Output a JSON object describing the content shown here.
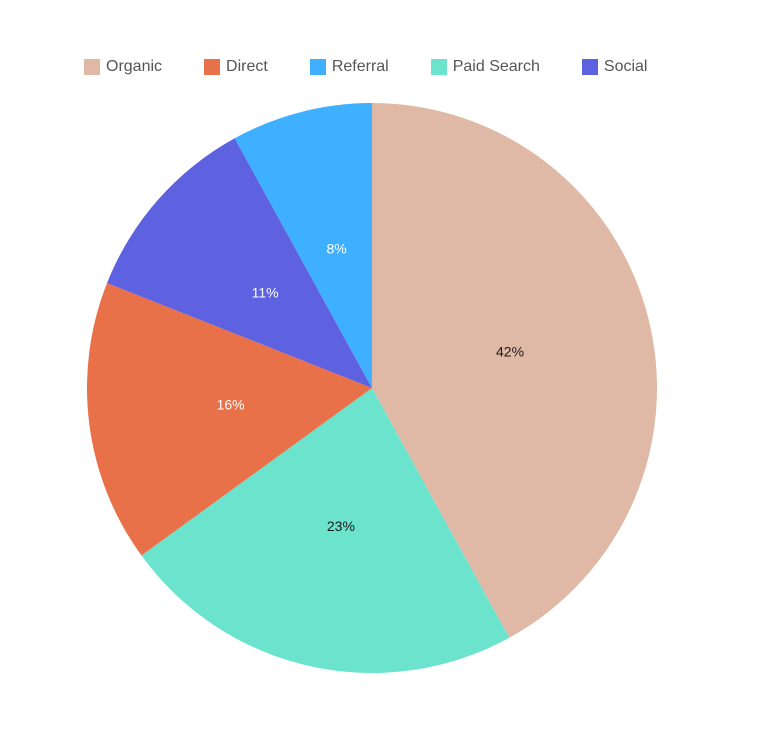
{
  "chart_data": {
    "type": "pie",
    "categories": [
      "Organic",
      "Paid Search",
      "Direct",
      "Social",
      "Referral"
    ],
    "values": [
      42,
      23,
      16,
      11,
      8
    ],
    "labels": [
      "42%",
      "23%",
      "16%",
      "11%",
      "8%"
    ],
    "colors": [
      "#e0b9a6",
      "#6be3cd",
      "#e8714a",
      "#5e62e0",
      "#3fafff"
    ],
    "label_colors": [
      "#1a1a1a",
      "#1a1a1a",
      "#ffffff",
      "#ffffff",
      "#ffffff"
    ],
    "start_angle_deg": 0,
    "direction": "clockwise",
    "legend": {
      "placement": "top",
      "items": [
        {
          "label": "Organic",
          "color": "#e0b9a6"
        },
        {
          "label": "Direct",
          "color": "#e8714a"
        },
        {
          "label": "Referral",
          "color": "#3fafff"
        },
        {
          "label": "Paid Search",
          "color": "#6be3cd"
        },
        {
          "label": "Social",
          "color": "#5e62e0"
        }
      ]
    }
  }
}
